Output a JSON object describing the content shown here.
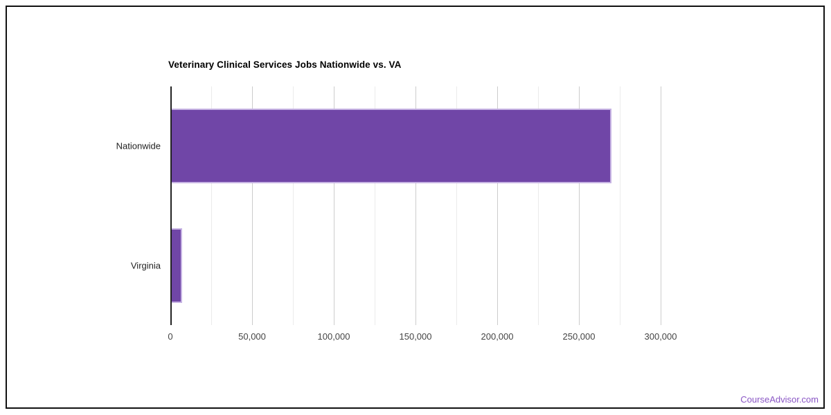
{
  "watermark": {
    "text": "CourseAdvisor.com",
    "color": "#8a56c5"
  },
  "chart_data": {
    "type": "bar",
    "orientation": "horizontal",
    "title": "Veterinary Clinical Services Jobs Nationwide vs. VA",
    "categories": [
      "Nationwide",
      "Virginia"
    ],
    "values": [
      270000,
      7000
    ],
    "xlabel": "",
    "ylabel": "",
    "xlim": [
      0,
      300000
    ],
    "x_major_ticks": [
      0,
      50000,
      100000,
      150000,
      200000,
      250000,
      300000
    ],
    "x_tick_labels": [
      "0",
      "50,000",
      "100,000",
      "150,000",
      "200,000",
      "250,000",
      "300,000"
    ],
    "x_minor_step": 25000,
    "grid": true,
    "legend": "none",
    "bar_color": "#7046A7",
    "bar_border_color": "#c6b3e3",
    "major_grid_color": "#cccccc",
    "minor_grid_color": "#ebebeb",
    "axis_line_color": "#222222",
    "title_color": "#000000",
    "category_label_color": "#222222",
    "tick_label_color": "#444444"
  }
}
